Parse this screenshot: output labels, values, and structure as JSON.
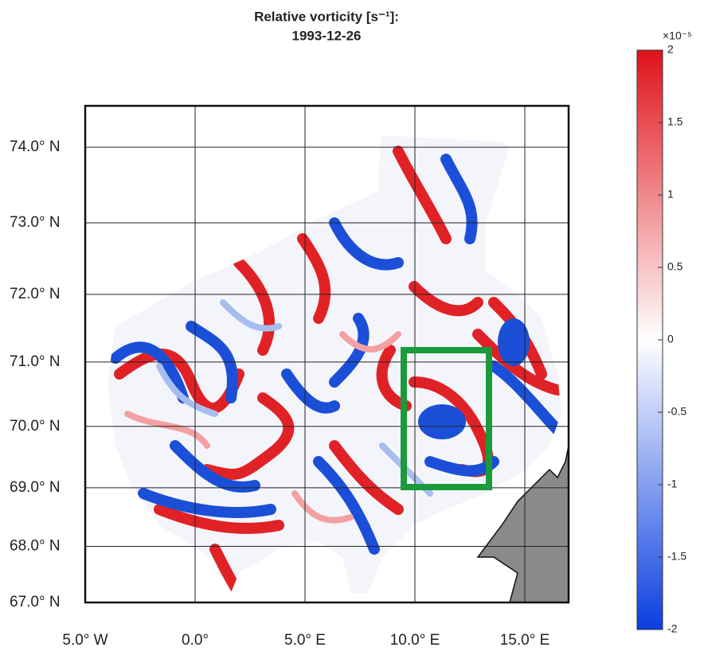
{
  "title": "Relative vorticity [s⁻¹]:",
  "date": "1993-12-26",
  "latitude": {
    "ticks": [
      {
        "value": 74,
        "label": "74.0° N"
      },
      {
        "value": 73,
        "label": "73.0° N"
      },
      {
        "value": 72,
        "label": "72.0° N"
      },
      {
        "value": 71,
        "label": "71.0° N"
      },
      {
        "value": 70,
        "label": "70.0° N"
      },
      {
        "value": 69,
        "label": "69.0° N"
      },
      {
        "value": 68,
        "label": "68.0° N"
      },
      {
        "value": 67,
        "label": "67.0° N"
      }
    ]
  },
  "longitude": {
    "ticks": [
      {
        "value": -5,
        "label": "5.0° W"
      },
      {
        "value": 0,
        "label": "0.0°"
      },
      {
        "value": 5,
        "label": "5.0° E"
      },
      {
        "value": 10,
        "label": "10.0° E"
      },
      {
        "value": 15,
        "label": "15.0° E"
      }
    ]
  },
  "colorbar": {
    "multiplier": "×10⁻⁵",
    "lim": [
      -2,
      2
    ],
    "ticks": [
      2,
      1.5,
      1,
      0.5,
      0,
      -0.5,
      -1,
      -1.5,
      -2
    ]
  }
}
